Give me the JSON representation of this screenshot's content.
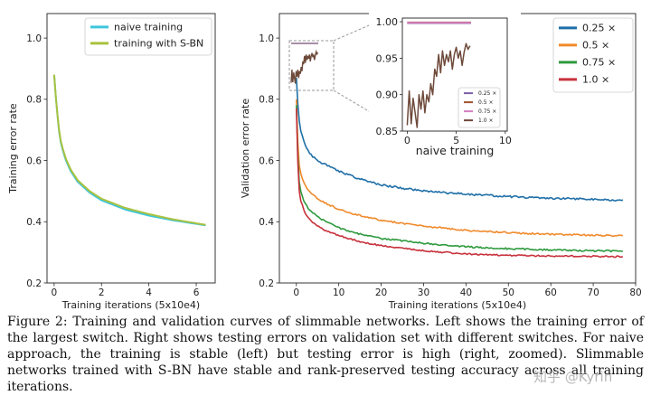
{
  "caption": "Figure 2: Training and validation curves of slimmable networks. Left shows the training error of the largest switch. Right shows testing errors on validation set with different switches. For naive approach, the training is stable (left) but testing error is high (right, zoomed). Slimmable networks trained with S-BN have stable and rank-preserved testing accuracy across all training iterations.",
  "watermark": "知乎 @Kyrin",
  "chart_data": [
    {
      "type": "line",
      "title": "",
      "xlabel": "Training iterations (5x10e4)",
      "ylabel": "Training error rate",
      "xlim": [
        -0.3,
        6.8
      ],
      "ylim": [
        0.2,
        1.08
      ],
      "xticks": [
        "0",
        "2",
        "4",
        "6"
      ],
      "yticks": [
        "0.2",
        "0.4",
        "0.6",
        "0.8",
        "1.0"
      ],
      "legend_position": "top-right",
      "series": [
        {
          "name": "naive training",
          "color": "#3ec6dd",
          "x": [
            0.0,
            0.1,
            0.2,
            0.3,
            0.5,
            0.7,
            1.0,
            1.5,
            2.0,
            3.0,
            4.0,
            5.0,
            6.0,
            6.4
          ],
          "y": [
            0.88,
            0.78,
            0.7,
            0.65,
            0.6,
            0.565,
            0.53,
            0.495,
            0.47,
            0.44,
            0.42,
            0.405,
            0.393,
            0.388
          ]
        },
        {
          "name": "training with S-BN",
          "color": "#a9c23f",
          "x": [
            0.0,
            0.1,
            0.2,
            0.3,
            0.5,
            0.7,
            1.0,
            1.5,
            2.0,
            3.0,
            4.0,
            5.0,
            6.0,
            6.4
          ],
          "y": [
            0.88,
            0.78,
            0.705,
            0.655,
            0.605,
            0.57,
            0.535,
            0.5,
            0.475,
            0.445,
            0.425,
            0.408,
            0.395,
            0.39
          ]
        }
      ]
    },
    {
      "type": "line",
      "title": "",
      "xlabel": "Training iterations (5x10e4)",
      "ylabel": "Validation error rate",
      "xlim": [
        -4,
        80
      ],
      "ylim": [
        0.2,
        1.08
      ],
      "xticks": [
        "0",
        "10",
        "20",
        "30",
        "40",
        "50",
        "60",
        "70",
        "80"
      ],
      "yticks": [
        "0.2",
        "0.4",
        "0.6",
        "0.8",
        "1.0"
      ],
      "legend_position": "top-right",
      "series": [
        {
          "name": "0.25 ×",
          "color": "#1f6fa8",
          "x": [
            0,
            0.5,
            1,
            2,
            3,
            5,
            7,
            10,
            15,
            20,
            30,
            40,
            50,
            60,
            70,
            77
          ],
          "y": [
            0.87,
            0.75,
            0.7,
            0.65,
            0.625,
            0.6,
            0.585,
            0.565,
            0.54,
            0.52,
            0.5,
            0.49,
            0.482,
            0.477,
            0.473,
            0.47
          ]
        },
        {
          "name": "0.5 ×",
          "color": "#f08a2c",
          "x": [
            0,
            0.5,
            1,
            2,
            3,
            5,
            7,
            10,
            15,
            20,
            30,
            40,
            50,
            60,
            70,
            77
          ],
          "y": [
            0.8,
            0.6,
            0.56,
            0.52,
            0.5,
            0.475,
            0.46,
            0.44,
            0.42,
            0.405,
            0.385,
            0.372,
            0.364,
            0.359,
            0.356,
            0.354
          ]
        },
        {
          "name": "0.75 ×",
          "color": "#2e9a3e",
          "x": [
            0,
            0.5,
            1,
            2,
            3,
            5,
            7,
            10,
            15,
            20,
            30,
            40,
            50,
            60,
            70,
            77
          ],
          "y": [
            0.78,
            0.55,
            0.5,
            0.46,
            0.44,
            0.415,
            0.4,
            0.38,
            0.36,
            0.345,
            0.33,
            0.318,
            0.312,
            0.308,
            0.305,
            0.304
          ]
        },
        {
          "name": "1.0 ×",
          "color": "#c8323c",
          "x": [
            0,
            0.5,
            1,
            2,
            3,
            5,
            7,
            10,
            15,
            20,
            30,
            40,
            50,
            60,
            70,
            77
          ],
          "y": [
            0.77,
            0.52,
            0.47,
            0.43,
            0.41,
            0.385,
            0.37,
            0.355,
            0.335,
            0.322,
            0.305,
            0.295,
            0.29,
            0.288,
            0.287,
            0.286
          ]
        }
      ]
    },
    {
      "type": "line",
      "title": "",
      "xlabel": "naive training",
      "ylabel": "",
      "xlim": [
        -0.5,
        10.2
      ],
      "ylim": [
        0.85,
        1.005
      ],
      "xticks": [
        "0",
        "5",
        "10"
      ],
      "yticks": [
        "0.85",
        "0.90",
        "0.95",
        "1.00"
      ],
      "legend_position": "bottom-right",
      "series": [
        {
          "name": "0.25 ×",
          "color": "#7b5ea7",
          "x": [
            0,
            6.5
          ],
          "y": [
            0.998,
            0.998
          ]
        },
        {
          "name": "0.5 ×",
          "color": "#a0522d",
          "x": [
            0,
            6.5
          ],
          "y": [
            0.999,
            0.999
          ]
        },
        {
          "name": "0.75 ×",
          "color": "#d77fc3",
          "x": [
            0,
            6.5
          ],
          "y": [
            0.9985,
            0.9985
          ]
        },
        {
          "name": "1.0 ×",
          "color": "#6e4a3a",
          "x": [
            0.0,
            0.2,
            0.4,
            0.6,
            0.8,
            1.0,
            1.2,
            1.4,
            1.6,
            1.8,
            2.0,
            2.2,
            2.4,
            2.6,
            2.8,
            3.0,
            3.2,
            3.4,
            3.6,
            3.8,
            4.0,
            4.2,
            4.4,
            4.6,
            4.8,
            5.0,
            5.2,
            5.4,
            5.6,
            5.8,
            6.0,
            6.2,
            6.4
          ],
          "y": [
            0.858,
            0.905,
            0.86,
            0.895,
            0.875,
            0.855,
            0.9,
            0.88,
            0.905,
            0.875,
            0.9,
            0.89,
            0.915,
            0.9,
            0.935,
            0.925,
            0.955,
            0.93,
            0.96,
            0.94,
            0.955,
            0.945,
            0.96,
            0.935,
            0.955,
            0.965,
            0.95,
            0.96,
            0.94,
            0.958,
            0.97,
            0.962,
            0.967
          ]
        }
      ]
    }
  ]
}
